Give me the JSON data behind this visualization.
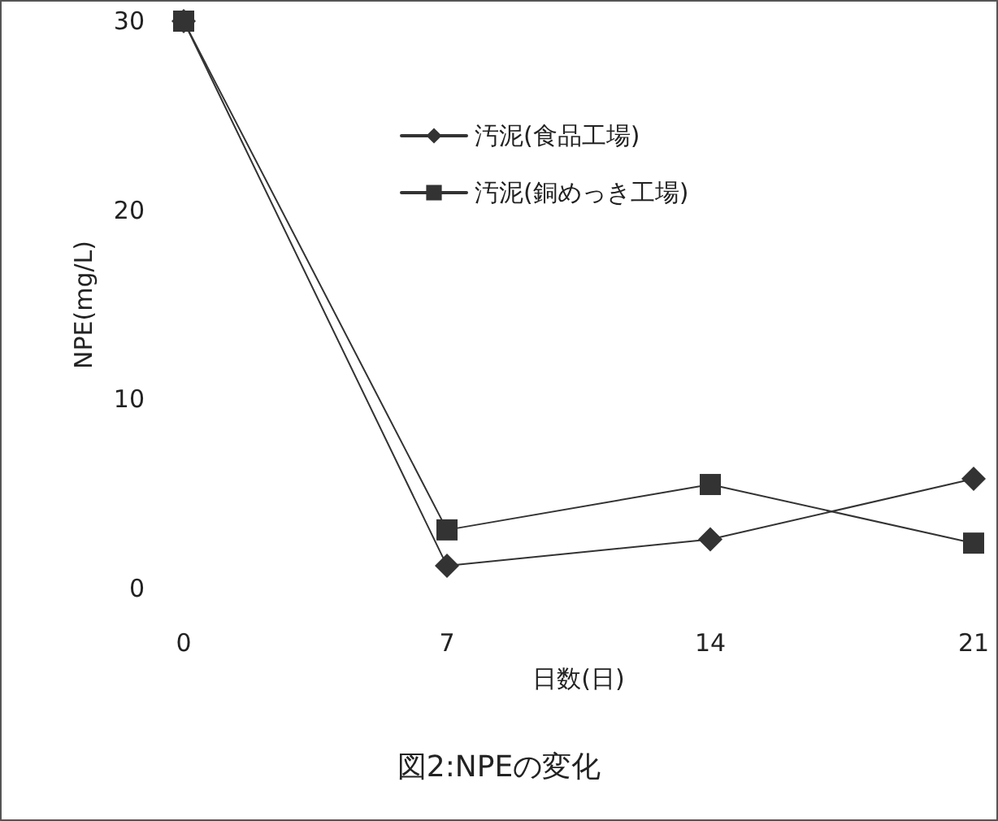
{
  "chart_data": {
    "type": "line",
    "title": "図2:NPEの変化",
    "xlabel": "日数(日)",
    "ylabel": "NPE(mg/L)",
    "x": [
      0,
      7,
      14,
      21
    ],
    "series": [
      {
        "name": "汚泥(食品工場)",
        "color": "#333333",
        "marker": "diamond",
        "values": [
          30,
          1.2,
          2.6,
          5.8
        ]
      },
      {
        "name": "汚泥(銅めっき工場)",
        "color": "#333333",
        "marker": "square",
        "values": [
          30,
          3.1,
          5.5,
          2.4
        ]
      }
    ],
    "xlim": [
      0,
      21
    ],
    "xticks": [
      0,
      7,
      14,
      21
    ],
    "ylim": [
      0,
      30
    ],
    "yticks": [
      0,
      10,
      20,
      30
    ],
    "grid": false,
    "legend": "top",
    "line_style": "solid"
  }
}
